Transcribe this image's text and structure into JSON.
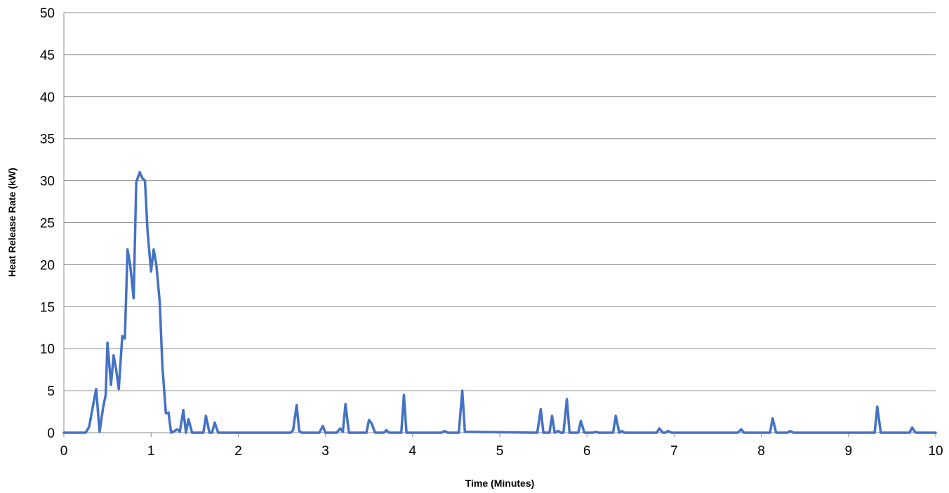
{
  "chart_data": {
    "type": "line",
    "title": "",
    "xlabel": "Time (Minutes)",
    "ylabel": "Heat Release Rate (kW)",
    "xlim": [
      0,
      10
    ],
    "ylim": [
      0,
      50
    ],
    "x_ticks": [
      "0",
      "1",
      "2",
      "3",
      "4",
      "5",
      "6",
      "7",
      "8",
      "9",
      "10"
    ],
    "y_ticks": [
      "0",
      "5",
      "10",
      "15",
      "20",
      "25",
      "30",
      "35",
      "40",
      "45",
      "50"
    ],
    "grid": "horizontal",
    "legend": "none",
    "series": [
      {
        "color": "#4472C4",
        "x": [
          0,
          0.25,
          0.29,
          0.33,
          0.37,
          0.41,
          0.45,
          0.48,
          0.5,
          0.54,
          0.57,
          0.6,
          0.63,
          0.67,
          0.7,
          0.73,
          0.76,
          0.8,
          0.83,
          0.87,
          0.9,
          0.93,
          0.96,
          1.0,
          1.03,
          1.06,
          1.1,
          1.13,
          1.17,
          1.2,
          1.23,
          1.27,
          1.3,
          1.33,
          1.37,
          1.4,
          1.43,
          1.47,
          1.5,
          1.53,
          1.6,
          1.63,
          1.67,
          1.7,
          1.73,
          1.77,
          1.8,
          2.6,
          2.63,
          2.67,
          2.7,
          2.73,
          2.93,
          2.97,
          3.0,
          3.13,
          3.17,
          3.2,
          3.23,
          3.27,
          3.47,
          3.5,
          3.53,
          3.57,
          3.67,
          3.7,
          3.73,
          3.87,
          3.9,
          3.93,
          4.33,
          4.37,
          4.4,
          4.53,
          4.57,
          4.6,
          5.43,
          5.47,
          5.5,
          5.57,
          5.6,
          5.63,
          5.67,
          5.7,
          5.73,
          5.77,
          5.8,
          5.9,
          5.93,
          5.97,
          6.07,
          6.1,
          6.13,
          6.3,
          6.33,
          6.37,
          6.4,
          6.43,
          6.8,
          6.83,
          6.87,
          6.9,
          6.93,
          6.97,
          7.73,
          7.77,
          7.8,
          8.1,
          8.13,
          8.17,
          8.3,
          8.33,
          8.37,
          9.3,
          9.33,
          9.37,
          9.7,
          9.73,
          9.77,
          10.0
        ],
        "values": [
          0,
          0,
          0.7,
          3.0,
          5.2,
          0.1,
          3.0,
          4.5,
          10.7,
          5.7,
          9.2,
          7.5,
          5.2,
          11.5,
          11.2,
          21.8,
          20.0,
          16.0,
          29.8,
          31.0,
          30.3,
          30.0,
          24.0,
          19.2,
          21.8,
          20.0,
          15.5,
          8.0,
          2.3,
          2.4,
          0,
          0.2,
          0.4,
          0.1,
          2.7,
          0,
          1.6,
          0,
          0,
          0,
          0,
          2.0,
          0,
          0,
          1.2,
          0,
          0,
          0,
          0.3,
          3.3,
          0.2,
          0,
          0,
          0.8,
          0,
          0,
          0.5,
          0.1,
          3.4,
          0,
          0,
          1.5,
          1.1,
          0,
          0,
          0.3,
          0,
          0,
          4.5,
          0,
          0,
          0.2,
          0,
          0,
          5.0,
          0.1,
          0,
          2.8,
          0,
          0,
          2.0,
          0,
          0.2,
          0,
          0,
          4.0,
          0,
          0,
          1.4,
          0,
          0,
          0.1,
          0,
          0,
          2.0,
          0,
          0.2,
          0,
          0,
          0.5,
          0,
          0,
          0.2,
          0,
          0,
          0.4,
          0,
          0,
          1.7,
          0,
          0,
          0.2,
          0,
          0,
          3.1,
          0,
          0,
          0.6,
          0,
          0
        ]
      }
    ]
  }
}
